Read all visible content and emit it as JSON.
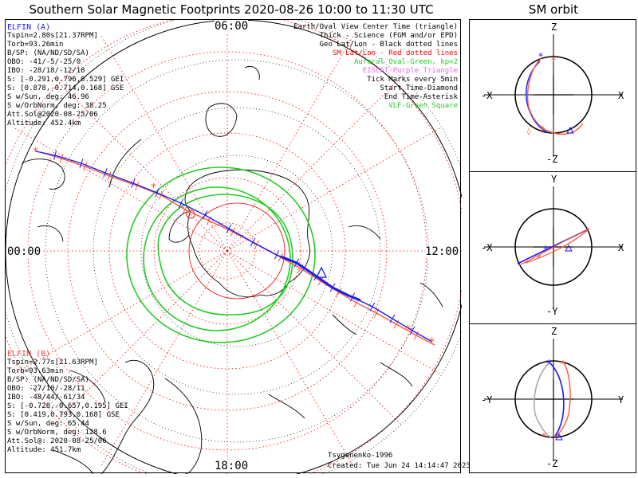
{
  "title": "Southern Solar Magnetic Footprints 2020-08-26 10:00 to 11:30 UTC",
  "orbit_title": "SM orbit",
  "local_times": {
    "top": "06:00",
    "left": "00:00",
    "right": "12:00",
    "bottom": "18:00"
  },
  "sat_a": {
    "name": "ELFIN (A)",
    "lines": [
      "Tspin=2.80s[21.37RPM]",
      "Torb=93.26min",
      "B/SP: (NA/ND/SD/SA)",
      "OBO: -41/-5/-25/0",
      "IBO: -28/18/-12/18",
      "S: [-0.291,0.796,0.529] GEI",
      "S: [0.878,-0.714,0.168] GSE",
      "S w/Sun, deg: 46.96",
      "S w/OrbNorm, deg: 38.25",
      "Att.Sol@2020-08-25/06",
      "Altitude: 452.4km"
    ]
  },
  "sat_b": {
    "name": "ELFIN (B)",
    "lines": [
      "Tspin=2.77s[21.63RPM]",
      "Torb=93.63min",
      "B/SP: (NA/ND/SD/SA)",
      "OBO: -27/10/-28/11",
      "IBO: -48/44/-61/34",
      "S: [-0.728,-0.657,0.195] GEI",
      "S: [0.419,0.793,0.168] GSE",
      "S w/Sun, deg: 65.44",
      "S w/OrbNorm, deg: 128.6",
      "Att.Sol@: 2020-08-25/06",
      "Altitude: 451.7km"
    ]
  },
  "legend": [
    {
      "text": "Earth/Oval View Center Time (triangle)",
      "color": "#000000"
    },
    {
      "text": "Thick - Science (FGM and/or EPD)",
      "color": "#000000"
    },
    {
      "text": "Geo Lat/Lon - Black dotted lines",
      "color": "#000000"
    },
    {
      "text": "SM Lat/Lon - Red dotted lines",
      "color": "#ff0000"
    },
    {
      "text": "Auroral Oval-Green, kp=2",
      "color": "#22cc22"
    },
    {
      "text": "EISCAT-Purple Triangle",
      "color": "#ee66ee"
    },
    {
      "text": "Tick Marks every 5min",
      "color": "#000000"
    },
    {
      "text": "Start Time-Diamond",
      "color": "#000000"
    },
    {
      "text": "End Time-Asterisk",
      "color": "#000000"
    },
    {
      "text": "VLF-Green Square",
      "color": "#22cc22"
    }
  ],
  "credits": {
    "author": "Tsyganenko-1996",
    "created": "Created: Tue Jun 24 14:14:47 2023"
  },
  "orbit_panels": [
    {
      "top": "Z",
      "bottom": "-Z",
      "left": "-X",
      "right": "X"
    },
    {
      "top": "Y",
      "bottom": "-Y",
      "left": "-X",
      "right": "X"
    },
    {
      "top": "Z",
      "bottom": "-Z",
      "left": "-Y",
      "right": "Y"
    }
  ],
  "colors": {
    "sat_a": "#1a1aff",
    "sat_b": "#ff5533",
    "oval": "#22cc22",
    "sm_grid": "#ff0000",
    "geo_grid": "#000000"
  },
  "chart_data": {
    "type": "scatter",
    "title": "Southern Solar Magnetic Footprints 2020-08-26 10:00 to 11:30 UTC",
    "projection": "southern polar, magnetic local time clock",
    "series": [
      {
        "name": "ELFIN (A)"
      },
      {
        "name": "ELFIN (B)"
      }
    ]
  }
}
